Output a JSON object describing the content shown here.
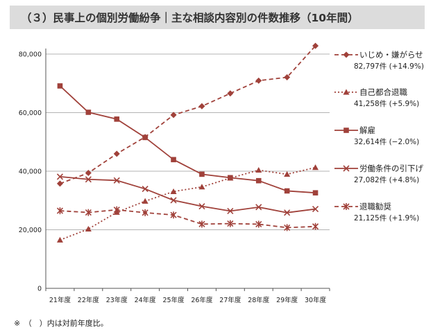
{
  "title": "（３）民事上の個別労働紛争｜主な相談内容別の件数推移（10年間）",
  "footnote": "※　（　）内は対前年度比。",
  "colors": {
    "series": "#a0413a",
    "grid": "#b3b3b3",
    "axis": "#555555",
    "title_bg": "#dcdcdc"
  },
  "chart_data": {
    "type": "line",
    "title": "",
    "xlabel": "",
    "ylabel": "",
    "grid": true,
    "ylim": [
      0,
      80000
    ],
    "yticks": [
      0,
      20000,
      40000,
      60000,
      80000
    ],
    "ytick_labels": [
      "0",
      "20,000",
      "40,000",
      "60,000",
      "80,000"
    ],
    "categories": [
      "21年度",
      "22年度",
      "23年度",
      "24年度",
      "25年度",
      "26年度",
      "27年度",
      "28年度",
      "29年度",
      "30年度"
    ],
    "legend_position": "right",
    "series": [
      {
        "name": "いじめ・嫌がらせ",
        "detail": "82,797件 (+14.9%)",
        "marker": "diamond",
        "line": "dashed",
        "values": [
          35759,
          39405,
          45939,
          51670,
          59197,
          62191,
          66566,
          70917,
          72067,
          82797
        ]
      },
      {
        "name": "自己都合退職",
        "detail": "41,258件 (+5.9%)",
        "marker": "triangle",
        "line": "dotted",
        "values": [
          16500,
          20265,
          25966,
          29763,
          33049,
          34626,
          37648,
          40364,
          38954,
          41258
        ]
      },
      {
        "name": "解雇",
        "detail": "32,614件 (−2.0%)",
        "marker": "square",
        "line": "solid",
        "values": [
          69121,
          60118,
          57785,
          51515,
          43956,
          38966,
          37787,
          36760,
          33269,
          32614
        ]
      },
      {
        "name": "労働条件の引下げ",
        "detail": "27,082件 (+4.8%)",
        "marker": "x",
        "line": "solid",
        "values": [
          38131,
          37210,
          36849,
          33955,
          30067,
          28015,
          26392,
          27723,
          25841,
          27082
        ]
      },
      {
        "name": "退職勧奨",
        "detail": "21,125件 (+1.9%)",
        "marker": "star",
        "line": "dashed",
        "values": [
          26487,
          25902,
          26828,
          25838,
          25041,
          21928,
          22110,
          21901,
          20736,
          21125
        ]
      }
    ]
  }
}
